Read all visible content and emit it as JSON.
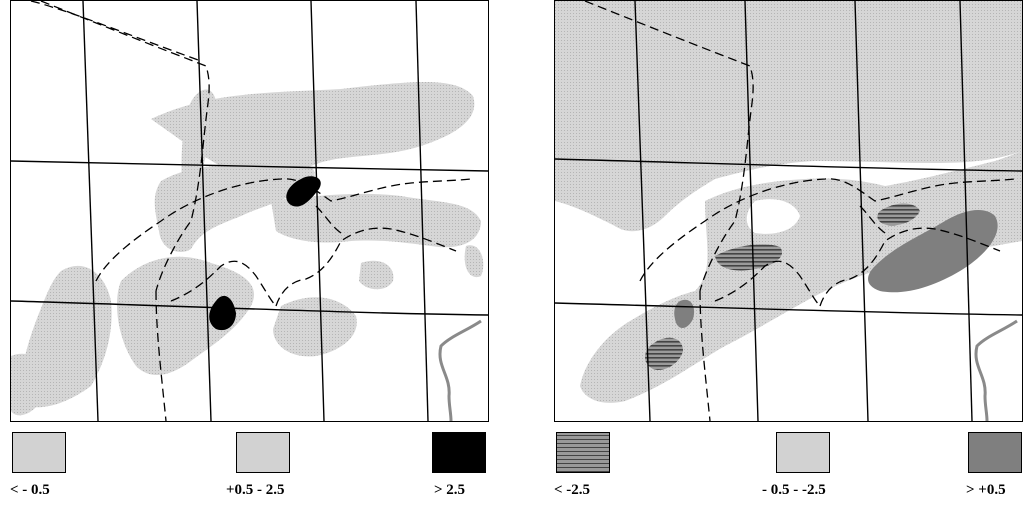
{
  "left_panel": {
    "legend": [
      {
        "label": "< - 0.5",
        "pattern": "dot-light"
      },
      {
        "label": "+0.5 - 2.5",
        "pattern": "dot-light"
      },
      {
        "label": "> 2.5",
        "pattern": "solid-black"
      }
    ]
  },
  "right_panel": {
    "legend": [
      {
        "label": "< -2.5",
        "pattern": "hatch"
      },
      {
        "label": "- 0.5 - -2.5",
        "pattern": "dot-light"
      },
      {
        "label": "> +0.5",
        "pattern": "solid-dark"
      }
    ]
  },
  "colors": {
    "light_fill": "#d2d2d2",
    "light_dot": "#b9b9b9",
    "dark_fill": "#7f7f7f",
    "black_fill": "#000000",
    "hatch_line": "#555555",
    "river": "#8a8a8a"
  }
}
